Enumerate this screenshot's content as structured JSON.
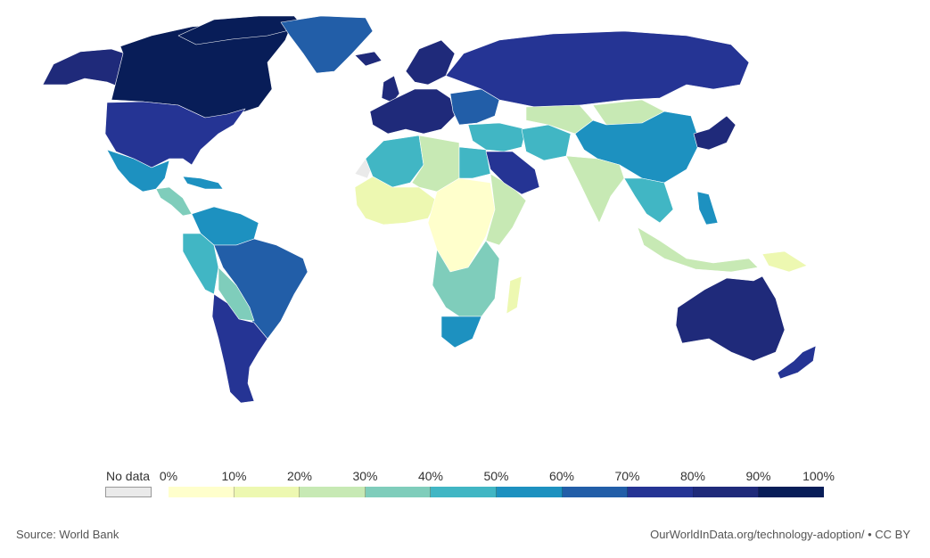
{
  "map": {
    "bins": [
      "#ffffcc",
      "#edf8b1",
      "#c7e9b4",
      "#7fcdbb",
      "#41b6c4",
      "#1d91c0",
      "#225ea8",
      "#253494",
      "#1f2a7a",
      "#081d58"
    ],
    "no_data_color": "#eaeaea",
    "regions": [
      {
        "name": "north-america-north",
        "bin": 9
      },
      {
        "name": "alaska",
        "bin": 8
      },
      {
        "name": "greenland",
        "bin": 6
      },
      {
        "name": "usa",
        "bin": 7
      },
      {
        "name": "mexico",
        "bin": 5
      },
      {
        "name": "central-america",
        "bin": 3
      },
      {
        "name": "caribbean",
        "bin": 5
      },
      {
        "name": "colombia-venezuela",
        "bin": 5
      },
      {
        "name": "brazil",
        "bin": 6
      },
      {
        "name": "peru",
        "bin": 4
      },
      {
        "name": "bolivia",
        "bin": 3
      },
      {
        "name": "argentina-chile",
        "bin": 7
      },
      {
        "name": "iceland",
        "bin": 8
      },
      {
        "name": "uk-ireland",
        "bin": 8
      },
      {
        "name": "scandinavia",
        "bin": 8
      },
      {
        "name": "western-europe",
        "bin": 8
      },
      {
        "name": "eastern-europe",
        "bin": 6
      },
      {
        "name": "russia",
        "bin": 7
      },
      {
        "name": "north-africa-west",
        "bin": 4
      },
      {
        "name": "north-africa-central",
        "bin": 2
      },
      {
        "name": "egypt",
        "bin": 4
      },
      {
        "name": "west-africa",
        "bin": 1
      },
      {
        "name": "central-africa",
        "bin": 0
      },
      {
        "name": "east-africa",
        "bin": 2
      },
      {
        "name": "southern-africa",
        "bin": 3
      },
      {
        "name": "south-africa",
        "bin": 5
      },
      {
        "name": "madagascar",
        "bin": 1
      },
      {
        "name": "middle-east",
        "bin": 4
      },
      {
        "name": "arabian-peninsula",
        "bin": 7
      },
      {
        "name": "iran",
        "bin": 4
      },
      {
        "name": "central-asia",
        "bin": 2
      },
      {
        "name": "mongolia",
        "bin": 2
      },
      {
        "name": "china",
        "bin": 5
      },
      {
        "name": "india",
        "bin": 2
      },
      {
        "name": "southeast-asia",
        "bin": 4
      },
      {
        "name": "indonesia",
        "bin": 2
      },
      {
        "name": "philippines",
        "bin": 5
      },
      {
        "name": "japan-korea",
        "bin": 8
      },
      {
        "name": "australia",
        "bin": 8
      },
      {
        "name": "new-zealand",
        "bin": 7
      },
      {
        "name": "papua",
        "bin": 1
      },
      {
        "name": "western-sahara",
        "bin": -1
      }
    ]
  },
  "legend": {
    "no_data_label": "No data",
    "ticks": [
      "0%",
      "10%",
      "20%",
      "30%",
      "40%",
      "50%",
      "60%",
      "70%",
      "80%",
      "90%",
      "100%"
    ]
  },
  "footer": {
    "source": "Source: World Bank",
    "credit": "OurWorldInData.org/technology-adoption/ • CC BY"
  }
}
